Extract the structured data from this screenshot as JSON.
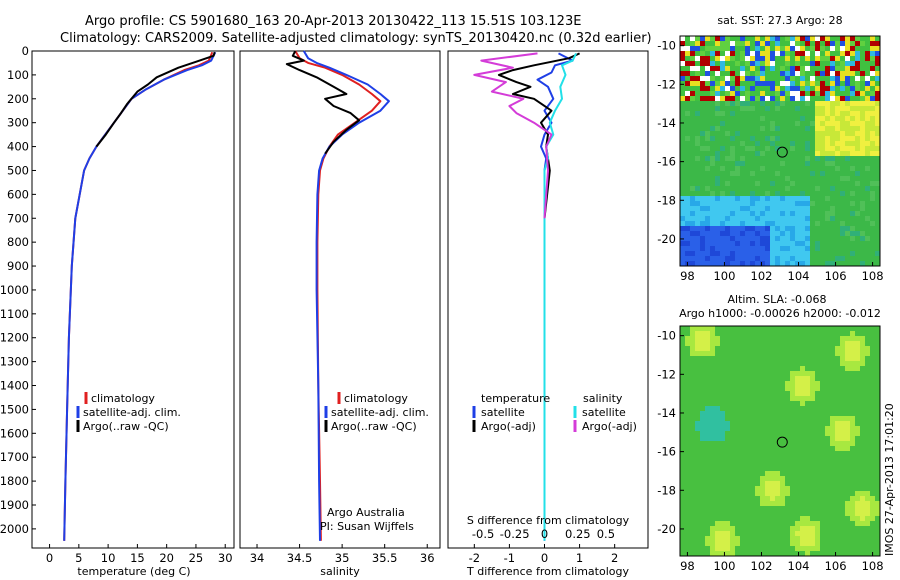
{
  "header": {
    "line1": "Argo profile: CS 5901680_163 20-Apr-2013 20130422_113 15.51S 103.123E",
    "line2": "Climatology: CARS2009. Satellite-adjusted climatology: synTS_20130420.nc (0.32d earlier)"
  },
  "stamp": "IMOS 27-Apr-2013 17:01:20",
  "colors": {
    "climatology": "#e02020",
    "satellite": "#1f3fe6",
    "argo": "#000000",
    "s_satellite": "#22e0e8",
    "s_argo": "#d43cd8"
  },
  "chart_data": [
    {
      "id": "temperature",
      "type": "line",
      "xlabel": "temperature (deg C)",
      "ylabel": "",
      "xlim": [
        -3,
        31.5
      ],
      "ylim": [
        2080,
        0
      ],
      "xticks": [
        "0",
        "5",
        "10",
        "15",
        "20",
        "25",
        "30"
      ],
      "xtick_values": [
        0,
        5,
        10,
        15,
        20,
        25,
        30
      ],
      "yticks": [
        "0",
        "100",
        "200",
        "300",
        "400",
        "500",
        "600",
        "700",
        "800",
        "900",
        "1000",
        "1100",
        "1200",
        "1300",
        "1400",
        "1500",
        "1600",
        "1700",
        "1800",
        "1900",
        "2000"
      ],
      "ytick_values": [
        0,
        100,
        200,
        300,
        400,
        500,
        600,
        700,
        800,
        900,
        1000,
        1100,
        1200,
        1300,
        1400,
        1500,
        1600,
        1700,
        1800,
        1900,
        2000
      ],
      "legend": [
        "climatology",
        "satellite-adj. clim.",
        "Argo(..raw -QC)"
      ],
      "series": [
        {
          "name": "climatology",
          "color_key": "climatology",
          "x": [
            27.8,
            27.2,
            25.5,
            23,
            19.5,
            16.5,
            14,
            12.5,
            11,
            9.5,
            8,
            6.8,
            5.9,
            4.4,
            3.8,
            3.3,
            3.0,
            2.7,
            2.5
          ],
          "y": [
            5,
            40,
            60,
            80,
            120,
            160,
            200,
            250,
            300,
            350,
            400,
            450,
            500,
            700,
            900,
            1200,
            1500,
            1800,
            2050
          ]
        },
        {
          "name": "satellite-adj. clim.",
          "color_key": "satellite",
          "x": [
            28.3,
            27.6,
            26,
            23.5,
            19.5,
            16.5,
            14,
            12.5,
            11,
            9.5,
            8,
            6.8,
            5.9,
            4.4,
            3.8,
            3.3,
            3.0,
            2.7,
            2.5
          ],
          "y": [
            5,
            40,
            60,
            80,
            120,
            160,
            200,
            250,
            300,
            350,
            400,
            450,
            500,
            700,
            900,
            1200,
            1500,
            1800,
            2050
          ]
        },
        {
          "name": "Argo(..raw -QC)",
          "color_key": "argo",
          "x": [
            28.2,
            28,
            25,
            22,
            18.3,
            16.8,
            15,
            13.3,
            12.2,
            11,
            9.6,
            8
          ],
          "y": [
            5,
            20,
            45,
            70,
            110,
            140,
            170,
            220,
            260,
            300,
            350,
            400
          ]
        }
      ]
    },
    {
      "id": "salinity",
      "type": "line",
      "xlabel": "salinity",
      "ylabel": "",
      "xlim": [
        33.8,
        36.15
      ],
      "ylim": [
        2080,
        0
      ],
      "xticks": [
        "34",
        "34.5",
        "35",
        "35.5",
        "36"
      ],
      "xtick_values": [
        34,
        34.5,
        35,
        35.5,
        36
      ],
      "legend": [
        "climatology",
        "satellite-adj. clim.",
        "Argo(..raw -QC)"
      ],
      "annotations": [
        "Argo Australia",
        "PI: Susan Wijffels"
      ],
      "series": [
        {
          "name": "climatology",
          "color_key": "climatology",
          "x": [
            34.45,
            34.5,
            34.6,
            34.8,
            35.0,
            35.2,
            35.35,
            35.45,
            35.35,
            35.15,
            34.95,
            34.85,
            34.78,
            34.74,
            34.72,
            34.71,
            34.71,
            34.72,
            34.74,
            34.75
          ],
          "y": [
            0,
            30,
            50,
            70,
            100,
            140,
            180,
            210,
            250,
            300,
            350,
            400,
            450,
            500,
            600,
            800,
            1000,
            1400,
            1800,
            2050
          ]
        },
        {
          "name": "satellite-adj. clim.",
          "color_key": "satellite",
          "x": [
            34.55,
            34.6,
            34.7,
            34.85,
            35.05,
            35.3,
            35.45,
            35.55,
            35.45,
            35.2,
            35.0,
            34.85,
            34.77,
            34.73,
            34.71,
            34.7,
            34.7,
            34.72,
            34.73,
            34.74
          ],
          "y": [
            0,
            30,
            50,
            70,
            100,
            140,
            180,
            210,
            250,
            300,
            350,
            400,
            450,
            500,
            600,
            800,
            1000,
            1400,
            1800,
            2050
          ]
        },
        {
          "name": "Argo(..raw -QC)",
          "color_key": "argo",
          "x": [
            34.45,
            34.42,
            34.55,
            34.35,
            34.5,
            34.7,
            34.9,
            35.05,
            34.8,
            34.9,
            35.1,
            35.2,
            35.05,
            34.9,
            34.8
          ],
          "y": [
            0,
            20,
            40,
            55,
            80,
            110,
            150,
            180,
            200,
            230,
            260,
            290,
            330,
            380,
            430
          ]
        }
      ]
    },
    {
      "id": "difference",
      "type": "line",
      "xlabel": "T difference from climatology",
      "top_label": "S difference from climatology",
      "xlim": [
        -2.75,
        2.95
      ],
      "ylim": [
        2080,
        0
      ],
      "xticks": [
        "-2",
        "-1",
        "0",
        "1",
        "2"
      ],
      "xtick_values": [
        -2,
        -1,
        0,
        1,
        2
      ],
      "sticks": [
        "-0.5",
        "-0.25",
        "0",
        "0.25",
        "0.5"
      ],
      "stick_positions_T": [
        -1.75,
        -0.85,
        0,
        0.95,
        1.75
      ],
      "legend_left": [
        "temperature",
        "satellite",
        "Argo(-adj)"
      ],
      "legend_right": [
        "salinity",
        "satellite",
        "Argo(-adj)"
      ],
      "series": [
        {
          "name": "T satellite",
          "color_key": "satellite",
          "x": [
            0.4,
            0.8,
            0.3,
            0.2,
            -0.2,
            0.1,
            0.25,
            0.0,
            0.2,
            0.0,
            -0.1,
            0.05,
            0.0,
            0.0,
            0.0,
            0.0
          ],
          "y": [
            10,
            40,
            60,
            90,
            120,
            150,
            200,
            250,
            300,
            350,
            400,
            450,
            500,
            700,
            1000,
            2050
          ]
        },
        {
          "name": "T Argo(-adj)",
          "color_key": "argo",
          "x": [
            1.0,
            0.7,
            -0.3,
            -0.9,
            -1.3,
            -0.8,
            -0.4,
            -0.9,
            -0.3,
            0.2,
            -0.1,
            0.1,
            0.05,
            0.15,
            0.0,
            0.0
          ],
          "y": [
            10,
            30,
            60,
            80,
            100,
            130,
            150,
            180,
            200,
            250,
            300,
            350,
            400,
            500,
            700,
            1000
          ]
        },
        {
          "name": "S satellite",
          "color_key": "s_satellite",
          "x": [
            0.9,
            0.8,
            0.5,
            0.6,
            0.45,
            0.5,
            0.3,
            0.15,
            0.25,
            0.05,
            0.1,
            0.0,
            0.0,
            0.0,
            0.0
          ],
          "y": [
            10,
            40,
            60,
            100,
            150,
            200,
            250,
            300,
            350,
            400,
            450,
            500,
            700,
            1000,
            2050
          ]
        },
        {
          "name": "S Argo(-adj)",
          "color_key": "s_argo",
          "x": [
            -0.2,
            -1.8,
            -0.9,
            -2.0,
            -1.1,
            -1.5,
            -0.6,
            -1.0,
            -0.8,
            -0.3,
            0.2,
            0.05,
            0.1,
            0.0
          ],
          "y": [
            10,
            40,
            70,
            100,
            130,
            170,
            200,
            230,
            260,
            300,
            350,
            400,
            500,
            700
          ]
        }
      ]
    },
    {
      "id": "sst_map",
      "type": "heatmap",
      "title": "sat. SST: 27.3 Argo: 28",
      "xticks": [
        "98",
        "100",
        "102",
        "104",
        "106",
        "108"
      ],
      "yticks": [
        "-10",
        "-12",
        "-14",
        "-16",
        "-18",
        "-20"
      ],
      "marker": {
        "lon": 103.123,
        "lat": -15.51
      }
    },
    {
      "id": "sla_map",
      "type": "heatmap",
      "title": "Altim. SLA: -0.068",
      "subtitle": "Argo h1000: -0.00026 h2000: -0.012",
      "xticks": [
        "98",
        "100",
        "102",
        "104",
        "106",
        "108"
      ],
      "yticks": [
        "-10",
        "-12",
        "-14",
        "-16",
        "-18",
        "-20"
      ],
      "marker": {
        "lon": 103.123,
        "lat": -15.51
      }
    }
  ]
}
